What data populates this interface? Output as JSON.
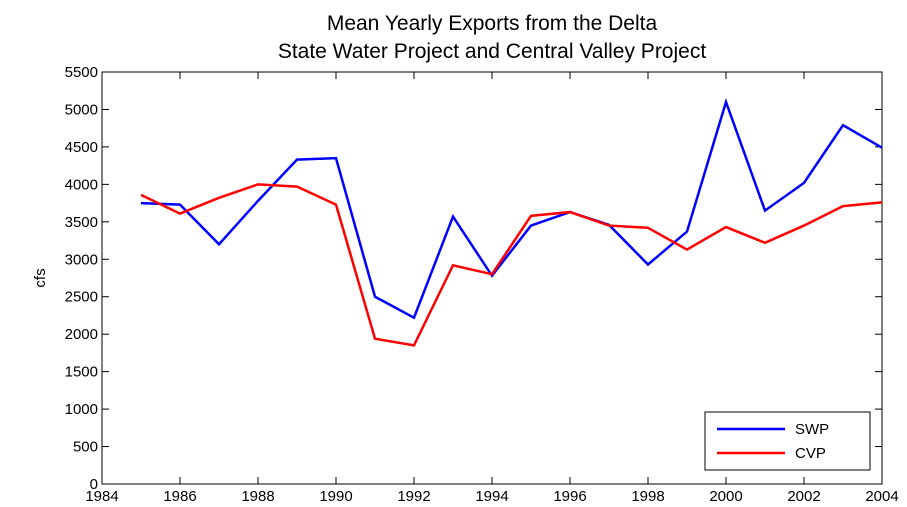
{
  "chart_data": {
    "type": "line",
    "title": "Mean Yearly Exports from the Delta",
    "subtitle": "State Water Project and Central Valley Project",
    "y_label": "cfs",
    "x": [
      1985,
      1986,
      1987,
      1988,
      1989,
      1990,
      1991,
      1992,
      1993,
      1994,
      1995,
      1996,
      1997,
      1998,
      1999,
      2000,
      2001,
      2002,
      2003,
      2004
    ],
    "series": [
      {
        "name": "SWP",
        "color": "#0000ff",
        "values": [
          3750,
          3730,
          3200,
          3780,
          4330,
          4350,
          2500,
          2220,
          3570,
          2780,
          3450,
          3630,
          3460,
          2930,
          3370,
          5100,
          3650,
          4020,
          4790,
          4490
        ]
      },
      {
        "name": "CVP",
        "color": "#ff0000",
        "values": [
          3860,
          3610,
          3820,
          4000,
          3970,
          3730,
          1940,
          1850,
          2920,
          2800,
          3580,
          3630,
          3450,
          3420,
          3130,
          3430,
          3220,
          3450,
          3710,
          3760
        ]
      }
    ],
    "xlim": [
      1984,
      2004
    ],
    "xticks": [
      1984,
      1986,
      1988,
      1990,
      1992,
      1994,
      1996,
      1998,
      2000,
      2002,
      2004
    ],
    "ylim": [
      0,
      5500
    ],
    "yticks": [
      0,
      500,
      1000,
      1500,
      2000,
      2500,
      3000,
      3500,
      4000,
      4500,
      5000,
      5500
    ],
    "legend": "lower right"
  }
}
